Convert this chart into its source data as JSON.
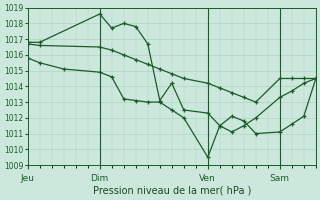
{
  "bg_color": "#cce8dc",
  "grid_color": "#b0d4c4",
  "line_color": "#1a5c28",
  "xlabel": "Pression niveau de la mer( hPa )",
  "xlabel_color": "#1a4a20",
  "ylim": [
    1009,
    1019
  ],
  "yticks": [
    1009,
    1010,
    1011,
    1012,
    1013,
    1014,
    1015,
    1016,
    1017,
    1018,
    1019
  ],
  "xtick_labels": [
    "Jeu",
    "Dim",
    "Ven",
    "Sam"
  ],
  "xtick_positions": [
    0,
    30,
    75,
    105
  ],
  "vline_x": [
    30,
    75,
    105
  ],
  "xlim": [
    0,
    120
  ],
  "line1_x": [
    0,
    5,
    30,
    35,
    40,
    45,
    50,
    55,
    60,
    65,
    75,
    80,
    85,
    90,
    95,
    105,
    110,
    115,
    120
  ],
  "line1_y": [
    1016.8,
    1016.8,
    1018.6,
    1017.7,
    1018.0,
    1017.8,
    1016.7,
    1013.1,
    1014.2,
    1012.5,
    1012.3,
    1011.5,
    1011.1,
    1011.5,
    1012.0,
    1013.3,
    1013.7,
    1014.2,
    1014.5
  ],
  "line2_x": [
    0,
    5,
    30,
    35,
    40,
    45,
    50,
    55,
    60,
    65,
    75,
    80,
    85,
    90,
    95,
    105,
    110,
    115,
    120
  ],
  "line2_y": [
    1016.7,
    1016.6,
    1016.5,
    1016.3,
    1016.0,
    1015.7,
    1015.4,
    1015.1,
    1014.8,
    1014.5,
    1014.2,
    1013.9,
    1013.6,
    1013.3,
    1013.0,
    1014.5,
    1014.5,
    1014.5,
    1014.5
  ],
  "line3_x": [
    0,
    5,
    15,
    30,
    35,
    40,
    45,
    50,
    55,
    60,
    65,
    75,
    80,
    85,
    90,
    95,
    105,
    110,
    115,
    120
  ],
  "line3_y": [
    1015.8,
    1015.5,
    1015.1,
    1014.9,
    1014.6,
    1013.2,
    1013.1,
    1013.0,
    1013.0,
    1012.5,
    1012.0,
    1009.5,
    1011.5,
    1012.1,
    1011.8,
    1011.0,
    1011.1,
    1011.6,
    1012.1,
    1014.5
  ]
}
